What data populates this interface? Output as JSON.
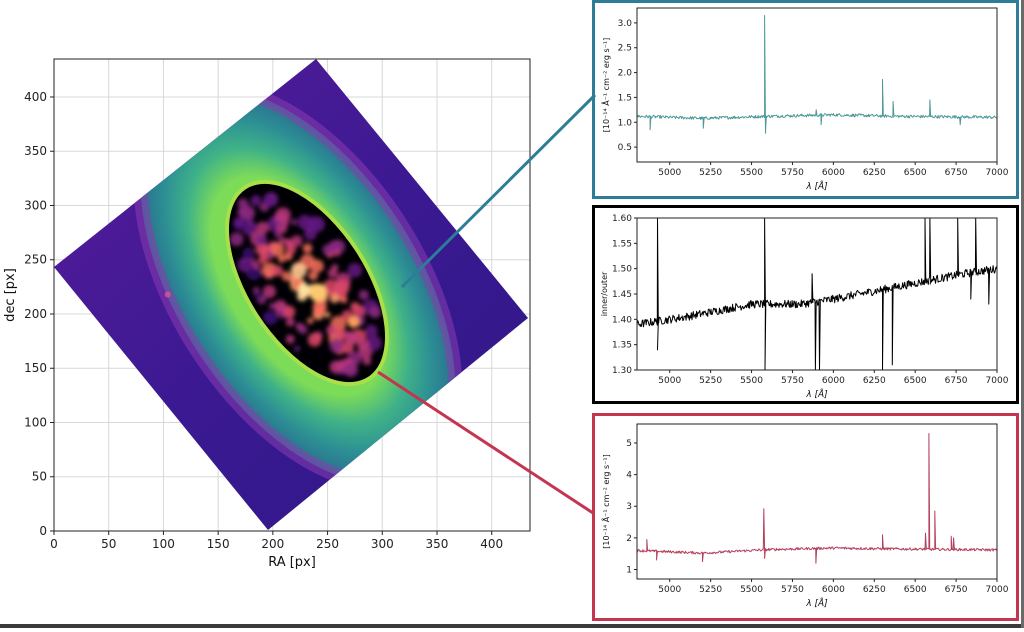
{
  "colors": {
    "top_spectrum": "#4d9a98",
    "top_frame": "#2d7d99",
    "ratio_spectrum": "#000000",
    "ratio_frame": "#000000",
    "bottom_spectrum": "#b4405d",
    "bottom_frame": "#c4354f",
    "outer_ring": "#4fa596",
    "inner_ellipse_bg": "#000004",
    "image_bg": "#3f1b8f"
  },
  "chart_data": [
    {
      "id": "image",
      "type": "heatmap",
      "xlabel": "RA [px]",
      "ylabel": "dec [px]",
      "xlim": [
        0,
        435
      ],
      "ylim": [
        0,
        435
      ],
      "xticks": [
        0,
        50,
        100,
        150,
        200,
        250,
        300,
        350,
        400
      ],
      "yticks": [
        0,
        50,
        100,
        150,
        200,
        250,
        300,
        350,
        400
      ],
      "colormap_outer": "plasma",
      "colormap_inner": "inferno",
      "grid": true
    },
    {
      "id": "outer_spectrum",
      "type": "line",
      "xlabel": "λ [Å]",
      "ylabel": "[10⁻¹⁴ Å⁻¹ cm⁻² erg s⁻¹]",
      "xlim": [
        4800,
        7000
      ],
      "ylim": [
        0.2,
        3.3
      ],
      "xticks": [
        5000,
        5250,
        5500,
        5750,
        6000,
        6250,
        6500,
        6750,
        7000
      ],
      "yticks": [
        0.5,
        1.0,
        1.5,
        2.0,
        2.5,
        3.0
      ],
      "baseline": [
        [
          4800,
          1.12
        ],
        [
          5200,
          1.08
        ],
        [
          5600,
          1.12
        ],
        [
          6000,
          1.15
        ],
        [
          6400,
          1.12
        ],
        [
          7000,
          1.1
        ]
      ],
      "noise": 0.03,
      "features": [
        {
          "x": 4880,
          "y": 0.85
        },
        {
          "x": 5205,
          "y": 0.88
        },
        {
          "x": 5580,
          "y": 3.15
        },
        {
          "x": 5585,
          "y": 0.78
        },
        {
          "x": 5895,
          "y": 1.25
        },
        {
          "x": 5925,
          "y": 0.95
        },
        {
          "x": 6300,
          "y": 1.86
        },
        {
          "x": 6365,
          "y": 1.42
        },
        {
          "x": 6590,
          "y": 1.45
        },
        {
          "x": 6775,
          "y": 0.95
        }
      ]
    },
    {
      "id": "ratio",
      "type": "line",
      "xlabel": "λ [Å]",
      "ylabel": "inner/outer",
      "xlim": [
        4800,
        7000
      ],
      "ylim": [
        1.3,
        1.6
      ],
      "xticks": [
        5000,
        5250,
        5500,
        5750,
        6000,
        6250,
        6500,
        6750,
        7000
      ],
      "yticks": [
        1.3,
        1.35,
        1.4,
        1.45,
        1.5,
        1.55,
        1.6
      ],
      "baseline": [
        [
          4800,
          1.39
        ],
        [
          5100,
          1.405
        ],
        [
          5500,
          1.43
        ],
        [
          5800,
          1.43
        ],
        [
          6000,
          1.44
        ],
        [
          6400,
          1.465
        ],
        [
          6800,
          1.49
        ],
        [
          7000,
          1.5
        ]
      ],
      "noise": 0.008,
      "features": [
        {
          "x": 4925,
          "y": 1.6
        },
        {
          "x": 4925,
          "y": 1.34
        },
        {
          "x": 5580,
          "y": 1.6
        },
        {
          "x": 5582,
          "y": 1.3
        },
        {
          "x": 5890,
          "y": 1.3
        },
        {
          "x": 5915,
          "y": 1.3
        },
        {
          "x": 5870,
          "y": 1.49
        },
        {
          "x": 6300,
          "y": 1.3
        },
        {
          "x": 6360,
          "y": 1.31
        },
        {
          "x": 6560,
          "y": 1.6
        },
        {
          "x": 6590,
          "y": 1.6
        },
        {
          "x": 6760,
          "y": 1.6
        },
        {
          "x": 6870,
          "y": 1.6
        },
        {
          "x": 6840,
          "y": 1.44
        },
        {
          "x": 6950,
          "y": 1.43
        }
      ]
    },
    {
      "id": "inner_spectrum",
      "type": "line",
      "xlabel": "λ [Å]",
      "ylabel": "[10⁻¹⁴ Å⁻¹ cm⁻² erg s⁻¹]",
      "xlim": [
        4800,
        7000
      ],
      "ylim": [
        0.7,
        5.6
      ],
      "xticks": [
        5000,
        5250,
        5500,
        5750,
        6000,
        6250,
        6500,
        6750,
        7000
      ],
      "yticks": [
        1,
        2,
        3,
        4,
        5
      ],
      "baseline": [
        [
          4800,
          1.6
        ],
        [
          5200,
          1.52
        ],
        [
          5600,
          1.63
        ],
        [
          6000,
          1.68
        ],
        [
          6400,
          1.65
        ],
        [
          7000,
          1.62
        ]
      ],
      "noise": 0.04,
      "features": [
        {
          "x": 4860,
          "y": 1.95
        },
        {
          "x": 4920,
          "y": 1.3
        },
        {
          "x": 5200,
          "y": 1.25
        },
        {
          "x": 5575,
          "y": 2.92
        },
        {
          "x": 5580,
          "y": 1.35
        },
        {
          "x": 5893,
          "y": 1.2
        },
        {
          "x": 6300,
          "y": 2.1
        },
        {
          "x": 6563,
          "y": 2.15
        },
        {
          "x": 6584,
          "y": 5.3
        },
        {
          "x": 6620,
          "y": 2.85
        },
        {
          "x": 6720,
          "y": 2.05
        },
        {
          "x": 6735,
          "y": 2.0
        }
      ]
    }
  ]
}
